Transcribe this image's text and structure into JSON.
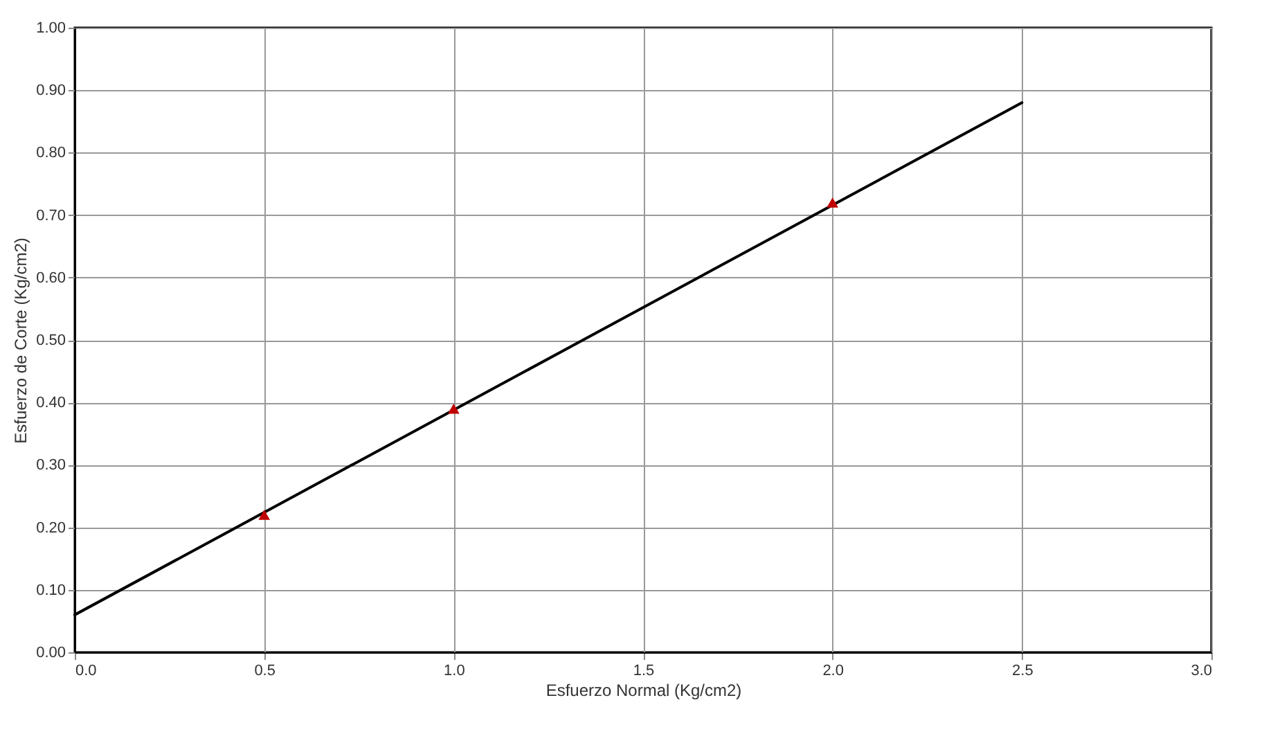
{
  "chart_data": {
    "type": "scatter",
    "xlabel": "Esfuerzo Normal (Kg/cm2)",
    "ylabel": "Esfuerzo de Corte (Kg/cm2)",
    "xlim": [
      0,
      3
    ],
    "xticks": [
      {
        "value": 0,
        "label": "0.0"
      },
      {
        "value": 0.5,
        "label": "0.5"
      },
      {
        "value": 1,
        "label": "1.0"
      },
      {
        "value": 1.5,
        "label": "1.5"
      },
      {
        "value": 2,
        "label": "2.0"
      },
      {
        "value": 2.5,
        "label": "2.5"
      },
      {
        "value": 3,
        "label": "3.0"
      }
    ],
    "ylim": [
      0,
      1
    ],
    "yticks": [
      {
        "value": 0,
        "label": "0.00"
      },
      {
        "value": 0.1,
        "label": "0.10"
      },
      {
        "value": 0.2,
        "label": "0.20"
      },
      {
        "value": 0.3,
        "label": "0.30"
      },
      {
        "value": 0.4,
        "label": "0.40"
      },
      {
        "value": 0.5,
        "label": "0.50"
      },
      {
        "value": 0.6,
        "label": "0.60"
      },
      {
        "value": 0.7,
        "label": "0.70"
      },
      {
        "value": 0.8,
        "label": "0.80"
      },
      {
        "value": 0.9,
        "label": "0.90"
      },
      {
        "value": 1,
        "label": "1.00"
      }
    ],
    "grid": true,
    "series": [
      {
        "type": "line",
        "color": "#000000",
        "x": [
          0,
          2.5
        ],
        "values": [
          0.06,
          0.88
        ],
        "marker": "none",
        "line_style": "solid"
      },
      {
        "type": "scatter",
        "color": "#c00000",
        "x": [
          0.5,
          1,
          2
        ],
        "values": [
          0.22,
          0.39,
          0.72
        ],
        "marker": "triangle"
      }
    ]
  }
}
